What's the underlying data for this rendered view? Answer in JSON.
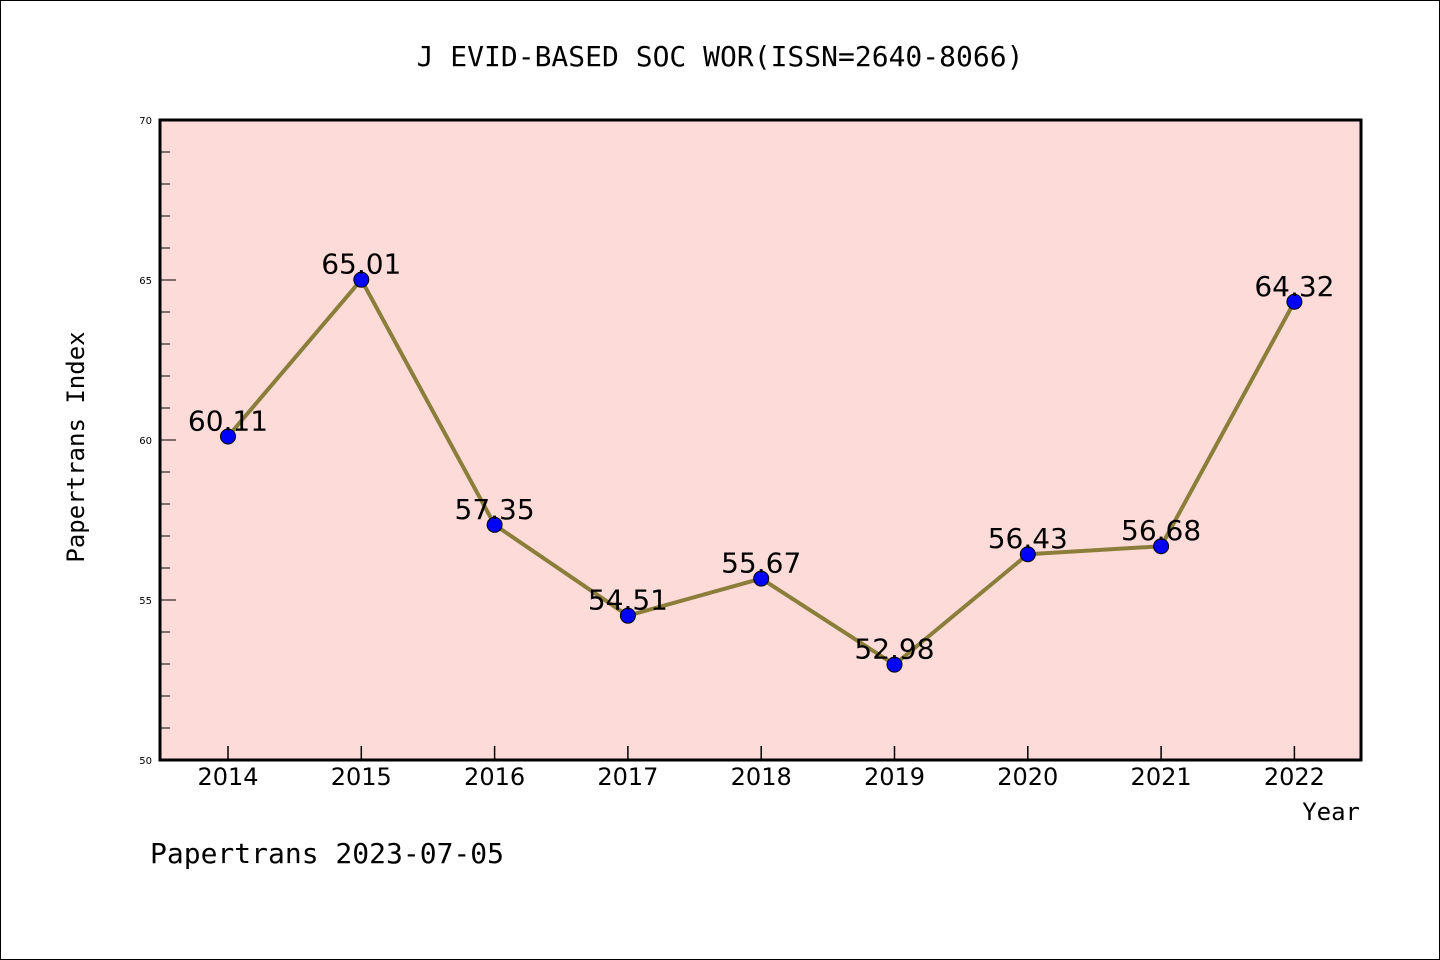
{
  "chart_data": {
    "type": "line",
    "title": "J EVID-BASED SOC WOR(ISSN=2640-8066)",
    "xlabel": "Year",
    "ylabel": "Papertrans Index",
    "x": [
      "2014",
      "2015",
      "2016",
      "2017",
      "2018",
      "2019",
      "2020",
      "2021",
      "2022"
    ],
    "series": [
      {
        "values": [
          60.11,
          65.01,
          57.35,
          54.51,
          55.67,
          52.98,
          56.43,
          56.68,
          64.32
        ],
        "labels": [
          "60.11",
          "65.01",
          "57.35",
          "54.51",
          "55.67",
          "52.98",
          "56.43",
          "56.68",
          "64.32"
        ]
      }
    ],
    "ylim": [
      50,
      70
    ],
    "y_ticks": [
      "50",
      "55",
      "60",
      "65",
      "70"
    ],
    "grid": false,
    "colors": {
      "plot_background": "#fddbd8",
      "line": "#8b7d3a",
      "marker": "#0000ff"
    },
    "footer": "Papertrans 2023-07-05"
  }
}
